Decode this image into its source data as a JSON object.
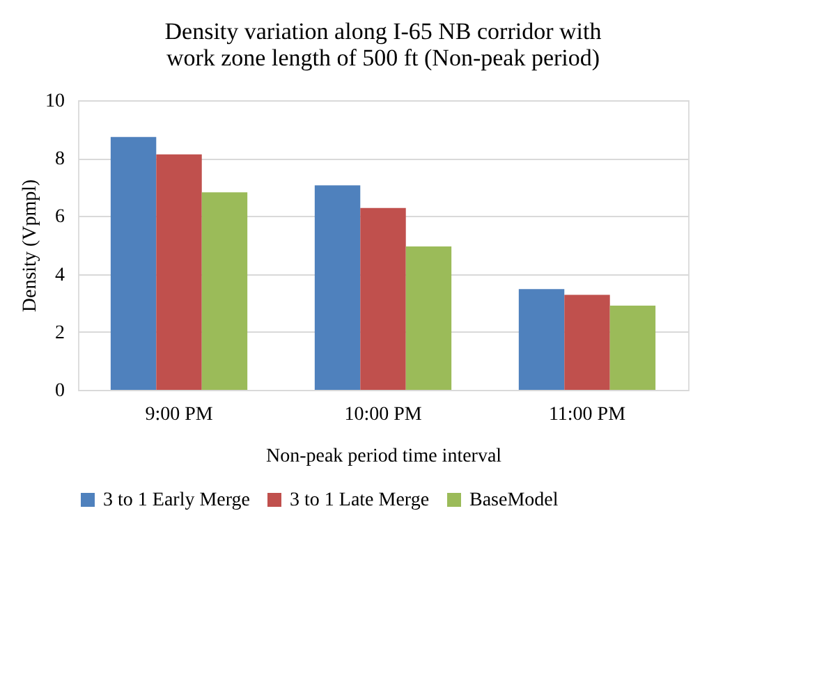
{
  "chart_data": {
    "type": "bar",
    "title": [
      "Density variation along I-65 NB corridor with",
      "work zone length of 500 ft (Non-peak period)"
    ],
    "xlabel": "Non-peak period time interval",
    "ylabel": "Density (Vpmpl)",
    "categories": [
      "9:00 PM",
      "10:00 PM",
      "11:00 PM"
    ],
    "series": [
      {
        "name": "3 to 1 Early Merge",
        "color": "#4f81bd",
        "values": [
          8.73,
          7.06,
          3.48
        ]
      },
      {
        "name": "3 to 1 Late Merge",
        "color": "#c0504d",
        "values": [
          8.13,
          6.28,
          3.28
        ]
      },
      {
        "name": "BaseModel",
        "color": "#9bbb59",
        "values": [
          6.82,
          4.95,
          2.91
        ]
      }
    ],
    "ylim": [
      0,
      10
    ],
    "yticks": [
      0,
      2,
      4,
      6,
      8,
      10
    ],
    "grid": "y",
    "legend": "bottom"
  }
}
